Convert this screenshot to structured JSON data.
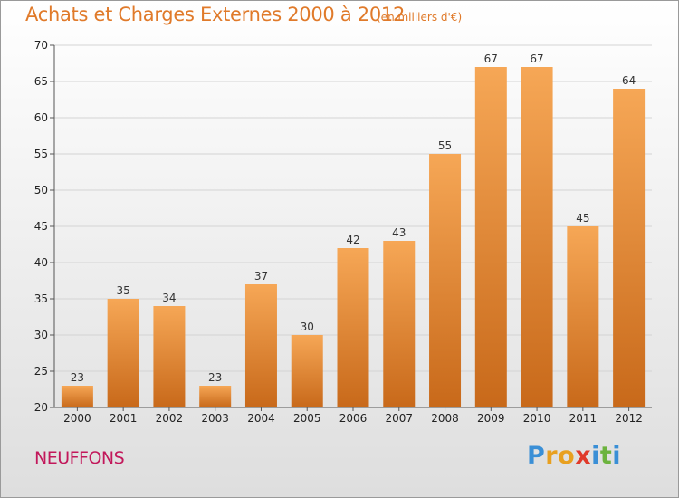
{
  "chart_data": {
    "type": "bar",
    "title": "Achats et Charges Externes 2000 à 2012",
    "subtitle": "(en milliers d'€)",
    "categories": [
      "2000",
      "2001",
      "2002",
      "2003",
      "2004",
      "2005",
      "2006",
      "2007",
      "2008",
      "2009",
      "2010",
      "2011",
      "2012"
    ],
    "values": [
      23,
      35,
      34,
      23,
      37,
      30,
      42,
      43,
      55,
      67,
      67,
      45,
      64
    ],
    "ylim": [
      20,
      70
    ],
    "yticks": [
      20,
      25,
      30,
      35,
      40,
      45,
      50,
      55,
      60,
      65,
      70
    ],
    "xlabel": "",
    "ylabel": "",
    "grid": true,
    "bar_color_top": "#f6a756",
    "bar_color_bottom": "#c8691a"
  },
  "footer": {
    "place_name": "NEUFFONS",
    "logo_letters": [
      "P",
      "r",
      "o",
      "x",
      "i",
      "t",
      "i"
    ],
    "logo_colors": [
      "#3a8fd6",
      "#e8a020",
      "#e8a020",
      "#e03a2a",
      "#3a8fd6",
      "#6cb33e",
      "#3a8fd6"
    ]
  }
}
